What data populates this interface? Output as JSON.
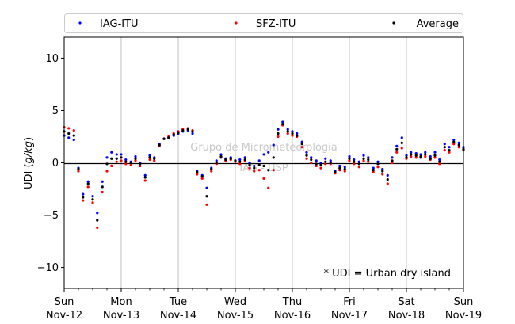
{
  "chart_data": {
    "type": "scatter",
    "title": "",
    "ylabel_prefix": "UDI (",
    "ylabel_unit": "g/kg",
    "ylabel_suffix": ")",
    "xlabel": "",
    "ylim": [
      -12,
      12
    ],
    "xlim": [
      0,
      7
    ],
    "yticks": [
      -10,
      -5,
      0,
      5,
      10
    ],
    "ytick_labels": [
      "−10",
      "−5",
      "0",
      "5",
      "10"
    ],
    "xticks": [
      {
        "x": 0,
        "day": "Sun",
        "date": "Nov-12"
      },
      {
        "x": 1,
        "day": "Mon",
        "date": "Nov-13"
      },
      {
        "x": 2,
        "day": "Tue",
        "date": "Nov-14"
      },
      {
        "x": 3,
        "day": "Wed",
        "date": "Nov-15"
      },
      {
        "x": 4,
        "day": "Thu",
        "date": "Nov-16"
      },
      {
        "x": 5,
        "day": "Fri",
        "date": "Nov-17"
      },
      {
        "x": 6,
        "day": "Sat",
        "date": "Nov-18"
      },
      {
        "x": 7,
        "day": "Sun",
        "date": "Nov-19"
      }
    ],
    "grid": "vertical",
    "zero_line": true,
    "legend_position": "top, above plot (3 columns)",
    "annotation": "* UDI = Urban dry island",
    "watermark": [
      "Grupo de Micrometeorologia",
      "IAG - USP"
    ],
    "series": [
      {
        "name": "IAG-ITU",
        "color": "#0000ff",
        "x": [
          0,
          0.08,
          0.17,
          0.25,
          0.33,
          0.42,
          0.5,
          0.58,
          0.67,
          0.75,
          0.83,
          0.92,
          1,
          1.08,
          1.17,
          1.25,
          1.33,
          1.42,
          1.5,
          1.58,
          1.67,
          1.75,
          1.83,
          1.92,
          2,
          2.08,
          2.17,
          2.25,
          2.33,
          2.42,
          2.5,
          2.58,
          2.67,
          2.75,
          2.83,
          2.92,
          3,
          3.08,
          3.17,
          3.25,
          3.33,
          3.42,
          3.5,
          3.58,
          3.67,
          3.75,
          3.83,
          3.92,
          4,
          4.08,
          4.17,
          4.25,
          4.33,
          4.42,
          4.5,
          4.58,
          4.67,
          4.75,
          4.83,
          4.92,
          5,
          5.08,
          5.17,
          5.25,
          5.33,
          5.42,
          5.5,
          5.58,
          5.67,
          5.75,
          5.83,
          5.92,
          6,
          6.08,
          6.17,
          6.25,
          6.33,
          6.42,
          6.5,
          6.58,
          6.67,
          6.75,
          6.83,
          6.92,
          7
        ],
        "y": [
          2.6,
          2.4,
          2.2,
          -0.5,
          -3,
          -1.8,
          -3.2,
          -4.8,
          -1.8,
          0.5,
          1,
          0.8,
          0.8,
          0.3,
          0.1,
          0.6,
          0,
          -1.2,
          0.7,
          0.5,
          1.8,
          2.3,
          2.4,
          2.6,
          2.8,
          3,
          3.1,
          2.8,
          -0.8,
          -1.2,
          -2.4,
          -0.5,
          0.2,
          0.8,
          0.4,
          0.5,
          0.2,
          0.3,
          0.5,
          0,
          -0.3,
          0.2,
          0.8,
          1,
          1.7,
          3.2,
          3.9,
          3.2,
          3,
          2.8,
          2,
          1,
          0.5,
          0.2,
          0,
          0.4,
          0.2,
          -0.8,
          -0.3,
          -0.4,
          0.6,
          0.3,
          0.1,
          0.7,
          0.5,
          -0.5,
          0.1,
          -0.6,
          -1.2,
          0.5,
          1.6,
          2.4,
          0.7,
          1,
          0.9,
          0.8,
          1,
          0.6,
          1,
          0.3,
          1.8,
          1.5,
          2.2,
          1.9,
          1.5
        ]
      },
      {
        "name": "SFZ-ITU",
        "color": "#ff0000",
        "x": [
          0,
          0.08,
          0.17,
          0.25,
          0.33,
          0.42,
          0.5,
          0.58,
          0.67,
          0.75,
          0.83,
          0.92,
          1,
          1.08,
          1.17,
          1.25,
          1.33,
          1.42,
          1.5,
          1.58,
          1.67,
          1.75,
          1.83,
          1.92,
          2,
          2.08,
          2.17,
          2.25,
          2.33,
          2.42,
          2.5,
          2.58,
          2.67,
          2.75,
          2.83,
          2.92,
          3,
          3.08,
          3.17,
          3.25,
          3.33,
          3.42,
          3.5,
          3.58,
          3.67,
          3.75,
          3.83,
          3.92,
          4,
          4.08,
          4.17,
          4.25,
          4.33,
          4.42,
          4.5,
          4.58,
          4.67,
          4.75,
          4.83,
          4.92,
          5,
          5.08,
          5.17,
          5.25,
          5.33,
          5.42,
          5.5,
          5.58,
          5.67,
          5.75,
          5.83,
          5.92,
          6,
          6.08,
          6.17,
          6.25,
          6.33,
          6.42,
          6.5,
          6.58,
          6.67,
          6.75,
          6.83,
          6.92,
          7
        ],
        "y": [
          3.4,
          3.3,
          3.1,
          -0.8,
          -3.6,
          -2.3,
          -3.8,
          -6.2,
          -2.8,
          -0.8,
          -0.3,
          0.1,
          0.2,
          -0.1,
          -0.2,
          0.2,
          -0.3,
          -1.7,
          0.3,
          0.2,
          1.6,
          2.3,
          2.5,
          2.8,
          3,
          3.2,
          3.3,
          3.1,
          -1.1,
          -1.5,
          -4,
          -0.8,
          -0.1,
          0.5,
          0.2,
          0.3,
          0.1,
          -0.1,
          0.2,
          -0.5,
          -0.8,
          -0.7,
          -1.5,
          -2.4,
          -0.7,
          2.5,
          3.6,
          2.8,
          2.6,
          2.5,
          1.5,
          0.4,
          0,
          -0.3,
          -0.5,
          -0.1,
          -0.1,
          -1,
          -0.7,
          -0.8,
          0.2,
          -0.1,
          -0.4,
          0.2,
          0.1,
          -0.9,
          -0.4,
          -1.1,
          -2,
          0,
          1,
          1.4,
          0.4,
          0.6,
          0.5,
          0.5,
          0.6,
          0.3,
          0.5,
          -0.1,
          1.2,
          1,
          1.8,
          1.5,
          1.2
        ]
      },
      {
        "name": "Average",
        "color": "#000000",
        "x": [
          0,
          0.08,
          0.17,
          0.25,
          0.33,
          0.42,
          0.5,
          0.58,
          0.67,
          0.75,
          0.83,
          0.92,
          1,
          1.08,
          1.17,
          1.25,
          1.33,
          1.42,
          1.5,
          1.58,
          1.67,
          1.75,
          1.83,
          1.92,
          2,
          2.08,
          2.17,
          2.25,
          2.33,
          2.42,
          2.5,
          2.58,
          2.67,
          2.75,
          2.83,
          2.92,
          3,
          3.08,
          3.17,
          3.25,
          3.33,
          3.42,
          3.5,
          3.58,
          3.67,
          3.75,
          3.83,
          3.92,
          4,
          4.08,
          4.17,
          4.25,
          4.33,
          4.42,
          4.5,
          4.58,
          4.67,
          4.75,
          4.83,
          4.92,
          5,
          5.08,
          5.17,
          5.25,
          5.33,
          5.42,
          5.5,
          5.58,
          5.67,
          5.75,
          5.83,
          5.92,
          6,
          6.08,
          6.17,
          6.25,
          6.33,
          6.42,
          6.5,
          6.58,
          6.67,
          6.75,
          6.83,
          6.92,
          7
        ],
        "y": [
          3,
          2.8,
          2.6,
          -0.6,
          -3.3,
          -2,
          -3.5,
          -5.5,
          -2.3,
          -0.1,
          0.4,
          0.4,
          0.5,
          0.1,
          0,
          0.4,
          -0.1,
          -1.4,
          0.5,
          0.4,
          1.7,
          2.3,
          2.4,
          2.7,
          2.9,
          3.1,
          3.2,
          3,
          -0.9,
          -1.3,
          -3.2,
          -0.6,
          0,
          0.6,
          0.3,
          0.4,
          0.2,
          0.1,
          0.3,
          -0.2,
          -0.5,
          -0.2,
          -0.3,
          -0.7,
          0.5,
          2.8,
          3.7,
          3,
          2.8,
          2.6,
          1.8,
          0.7,
          0.3,
          -0.1,
          -0.2,
          0.1,
          0,
          -0.9,
          -0.5,
          -0.6,
          0.4,
          0.1,
          -0.1,
          0.4,
          0.3,
          -0.7,
          -0.1,
          -0.8,
          -1.6,
          0.2,
          1.3,
          1.9,
          0.5,
          0.8,
          0.7,
          0.6,
          0.8,
          0.4,
          0.7,
          0.1,
          1.5,
          1.2,
          2,
          1.7,
          1.3
        ]
      }
    ]
  }
}
